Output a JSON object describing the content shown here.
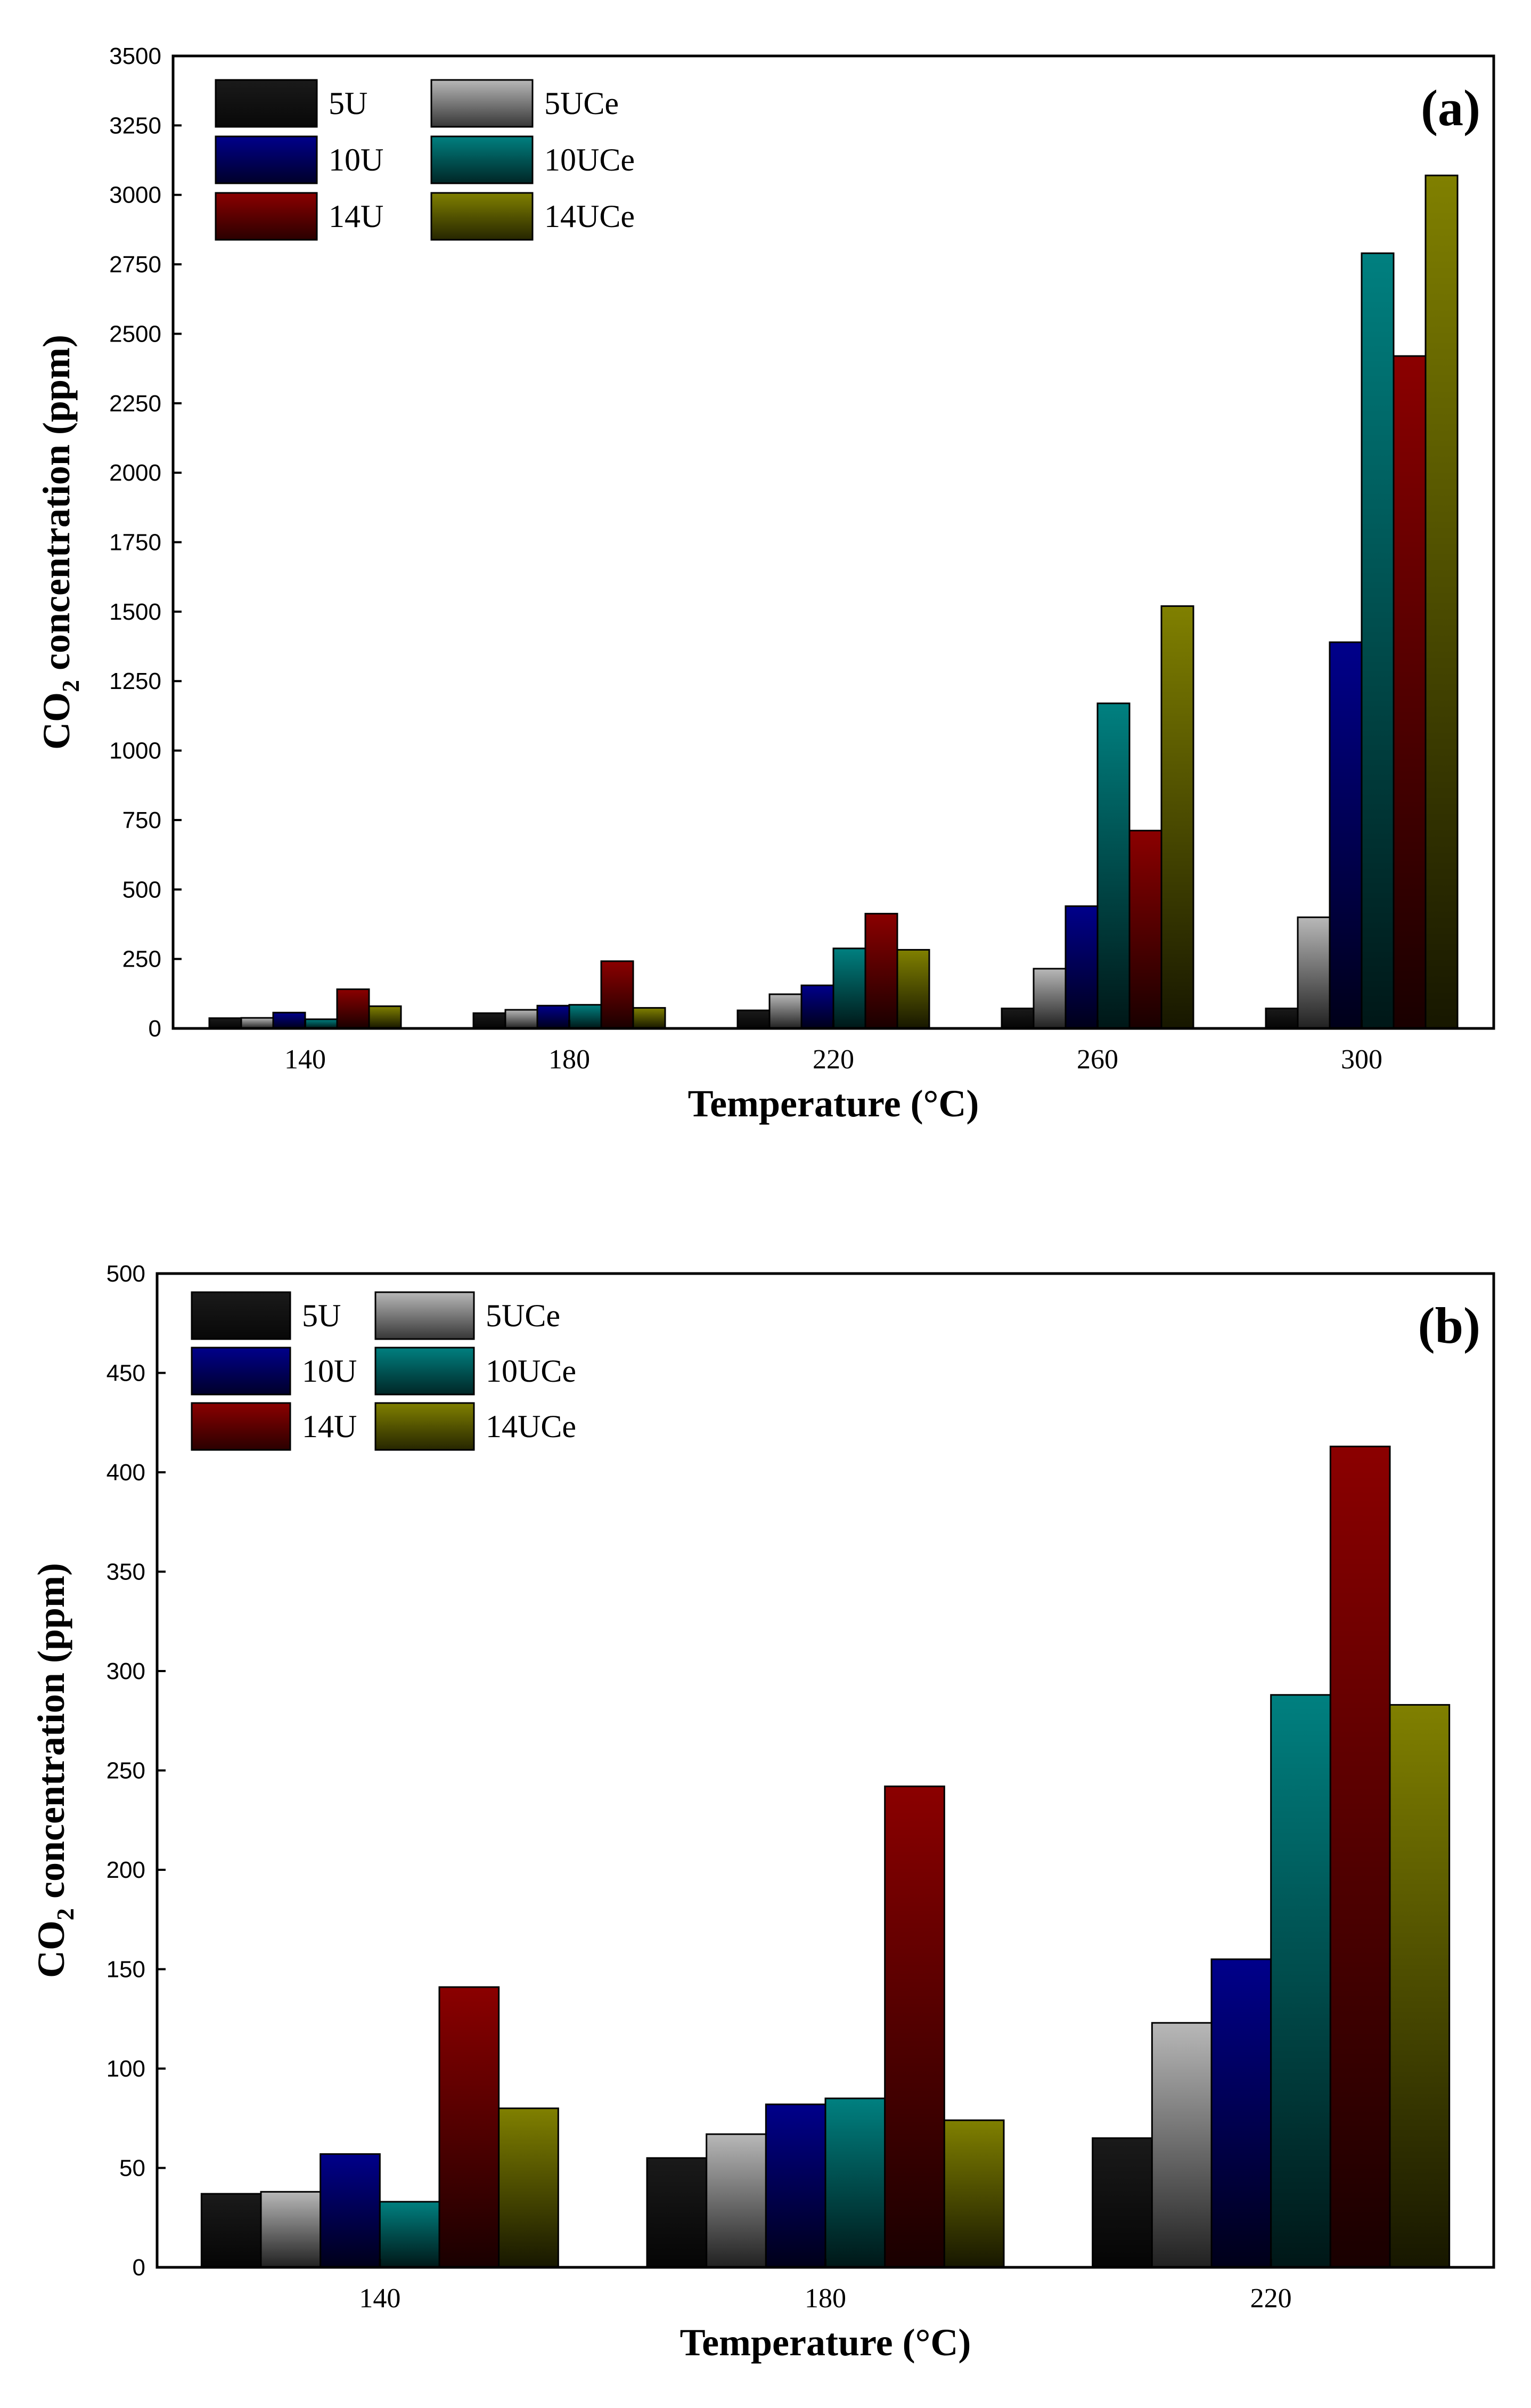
{
  "chart_data": [
    {
      "type": "bar",
      "panel_label": "(a)",
      "xlabel": "Temperature (°C)",
      "ylabel": "CO2 concentration (ppm)",
      "ylabel_parts": {
        "pre": "CO",
        "sub": "2",
        "post": " concentration (ppm)"
      },
      "ylim": [
        0,
        3500
      ],
      "yticks": [
        0,
        250,
        500,
        750,
        1000,
        1250,
        1500,
        1750,
        2000,
        2250,
        2500,
        2750,
        3000,
        3250,
        3500
      ],
      "categories": [
        "140",
        "180",
        "220",
        "260",
        "300"
      ],
      "legend_position": "top-left",
      "series": [
        {
          "name": "5U",
          "color": "#1a1a1a",
          "values": [
            37,
            55,
            65,
            72,
            72
          ]
        },
        {
          "name": "5UCe",
          "color": "#b8b8b8",
          "values": [
            38,
            67,
            123,
            215,
            400
          ]
        },
        {
          "name": "10U",
          "color": "#00008b",
          "values": [
            57,
            82,
            155,
            440,
            1390
          ]
        },
        {
          "name": "10UCe",
          "color": "#008080",
          "values": [
            33,
            85,
            288,
            1170,
            2790
          ]
        },
        {
          "name": "14U",
          "color": "#8b0000",
          "values": [
            141,
            242,
            413,
            712,
            2420
          ]
        },
        {
          "name": "14UCe",
          "color": "#808000",
          "values": [
            80,
            74,
            283,
            1520,
            3070
          ]
        }
      ]
    },
    {
      "type": "bar",
      "panel_label": "(b)",
      "xlabel": "Temperature (°C)",
      "ylabel": "CO2 concentration (ppm)",
      "ylabel_parts": {
        "pre": "CO",
        "sub": "2",
        "post": " concentration (ppm)"
      },
      "ylim": [
        0,
        500
      ],
      "yticks": [
        0,
        50,
        100,
        150,
        200,
        250,
        300,
        350,
        400,
        450,
        500
      ],
      "categories": [
        "140",
        "180",
        "220"
      ],
      "legend_position": "top-left",
      "series": [
        {
          "name": "5U",
          "color": "#1a1a1a",
          "values": [
            37,
            55,
            65
          ]
        },
        {
          "name": "5UCe",
          "color": "#b8b8b8",
          "values": [
            38,
            67,
            123
          ]
        },
        {
          "name": "10U",
          "color": "#00008b",
          "values": [
            57,
            82,
            155
          ]
        },
        {
          "name": "10UCe",
          "color": "#008080",
          "values": [
            33,
            85,
            288
          ]
        },
        {
          "name": "14U",
          "color": "#8b0000",
          "values": [
            141,
            242,
            413
          ]
        },
        {
          "name": "14UCe",
          "color": "#808000",
          "values": [
            80,
            74,
            283
          ]
        }
      ]
    }
  ]
}
